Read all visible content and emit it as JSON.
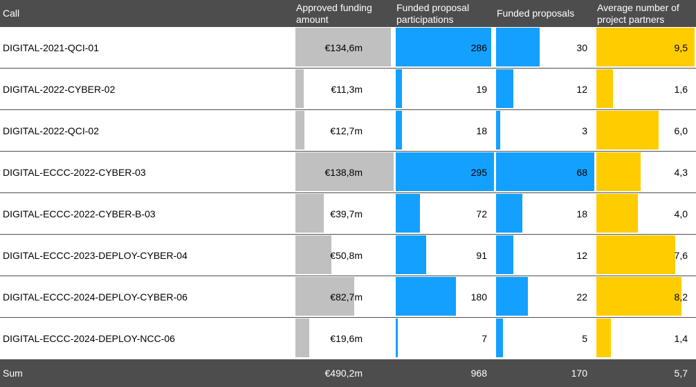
{
  "headers": {
    "call": "Call",
    "funding_line1": "Approved funding",
    "funding_line2": "amount",
    "participations_line1": "Funded proposal",
    "participations_line2": "participations",
    "proposals": "Funded proposals",
    "partners_line1": "Average number of",
    "partners_line2": "project partners"
  },
  "colors": {
    "header_bg": "#4d4d4d",
    "funding_bar": "#c0c0c0",
    "participations_bar": "#14a0ff",
    "proposals_bar": "#14a0ff",
    "partners_bar": "#ffcc00"
  },
  "chart_data": {
    "type": "table",
    "columns": [
      "Call",
      "Approved funding amount",
      "Funded proposal participations",
      "Funded proposals",
      "Average number of project partners"
    ],
    "rows": [
      {
        "call": "DIGITAL-2021-QCI-01",
        "funding": 134.6,
        "funding_label": "€134,6m",
        "participations": 286,
        "participations_label": "286",
        "proposals": 30,
        "proposals_label": "30",
        "partners": 9.5,
        "partners_label": "9,5"
      },
      {
        "call": "DIGITAL-2022-CYBER-02",
        "funding": 11.3,
        "funding_label": "€11,3m",
        "participations": 19,
        "participations_label": "19",
        "proposals": 12,
        "proposals_label": "12",
        "partners": 1.6,
        "partners_label": "1,6"
      },
      {
        "call": "DIGITAL-2022-QCI-02",
        "funding": 12.7,
        "funding_label": "€12,7m",
        "participations": 18,
        "participations_label": "18",
        "proposals": 3,
        "proposals_label": "3",
        "partners": 6.0,
        "partners_label": "6,0"
      },
      {
        "call": "DIGITAL-ECCC-2022-CYBER-03",
        "funding": 138.8,
        "funding_label": "€138,8m",
        "participations": 295,
        "participations_label": "295",
        "proposals": 68,
        "proposals_label": "68",
        "partners": 4.3,
        "partners_label": "4,3"
      },
      {
        "call": "DIGITAL-ECCC-2022-CYBER-B-03",
        "funding": 39.7,
        "funding_label": "€39,7m",
        "participations": 72,
        "participations_label": "72",
        "proposals": 18,
        "proposals_label": "18",
        "partners": 4.0,
        "partners_label": "4,0"
      },
      {
        "call": "DIGITAL-ECCC-2023-DEPLOY-CYBER-04",
        "funding": 50.8,
        "funding_label": "€50,8m",
        "participations": 91,
        "participations_label": "91",
        "proposals": 12,
        "proposals_label": "12",
        "partners": 7.6,
        "partners_label": "7,6"
      },
      {
        "call": "DIGITAL-ECCC-2024-DEPLOY-CYBER-06",
        "funding": 82.7,
        "funding_label": "€82,7m",
        "participations": 180,
        "participations_label": "180",
        "proposals": 22,
        "proposals_label": "22",
        "partners": 8.2,
        "partners_label": "8,2"
      },
      {
        "call": "DIGITAL-ECCC-2024-DEPLOY-NCC-06",
        "funding": 19.6,
        "funding_label": "€19,6m",
        "participations": 7,
        "participations_label": "7",
        "proposals": 5,
        "proposals_label": "5",
        "partners": 1.4,
        "partners_label": "1,4"
      }
    ],
    "totals": {
      "label": "Sum",
      "funding_label": "€490,2m",
      "participations_label": "968",
      "proposals_label": "170",
      "partners_label": "5,7"
    }
  }
}
